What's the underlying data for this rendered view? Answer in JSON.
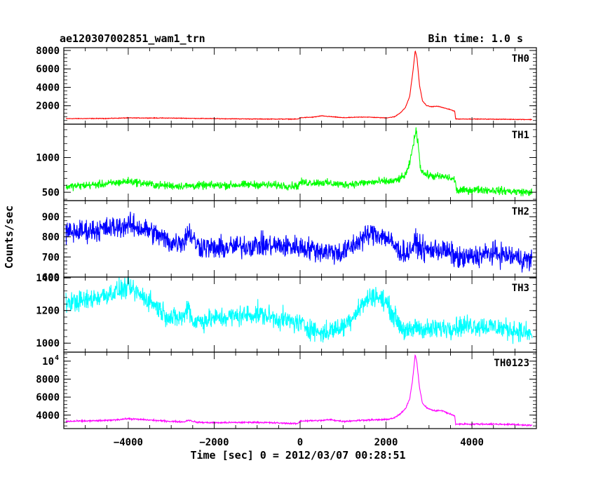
{
  "chart_data": {
    "type": "line",
    "title_left": "ae120307002851_wam1_trn",
    "title_right": "Bin time: 1.0 s",
    "xlabel": "Time [sec] 0 = 2012/03/07 00:28:51",
    "ylabel": "Counts/sec",
    "xlim": [
      -5500,
      5500
    ],
    "xticks": [
      -4000,
      -2000,
      0,
      2000,
      4000
    ],
    "xticklabels": [
      "−4000",
      "−2000",
      "0",
      "2000",
      "4000"
    ],
    "panels": [
      {
        "name": "TH0",
        "color": "#ff0000",
        "ylim": [
          0,
          8300
        ],
        "yticks": [
          2000,
          4000,
          6000,
          8000
        ],
        "yticklabels": [
          "2000",
          "4000",
          "6000",
          "8000"
        ],
        "noise": 25,
        "x": [
          -5450,
          -4500,
          -4000,
          -3000,
          -2000,
          -1000,
          -50,
          0,
          300,
          500,
          700,
          1000,
          1500,
          2000,
          2200,
          2350,
          2450,
          2550,
          2620,
          2680,
          2720,
          2780,
          2850,
          2950,
          3050,
          3200,
          3400,
          3550,
          3600,
          3620,
          4000,
          4500,
          5000,
          5400
        ],
        "y": [
          600,
          620,
          680,
          660,
          600,
          560,
          550,
          700,
          760,
          900,
          820,
          700,
          780,
          680,
          800,
          1300,
          1800,
          3000,
          5500,
          8000,
          7200,
          4200,
          2500,
          2000,
          1900,
          1950,
          1700,
          1500,
          1400,
          560,
          560,
          540,
          520,
          500
        ]
      },
      {
        "name": "TH1",
        "color": "#00ff00",
        "ylim": [
          380,
          1480
        ],
        "yticks": [
          500,
          1000
        ],
        "yticklabels": [
          "500",
          "1000"
        ],
        "noise": 40,
        "x": [
          -5450,
          -4500,
          -4000,
          -3300,
          -2700,
          -2000,
          -1000,
          -50,
          0,
          500,
          1000,
          1800,
          2200,
          2400,
          2500,
          2580,
          2650,
          2700,
          2750,
          2800,
          2900,
          3100,
          3400,
          3600,
          3650,
          4200,
          5000,
          5400
        ],
        "y": [
          580,
          620,
          660,
          600,
          590,
          600,
          610,
          590,
          640,
          640,
          610,
          650,
          660,
          720,
          800,
          1000,
          1250,
          1380,
          1200,
          850,
          760,
          730,
          720,
          680,
          520,
          540,
          510,
          500
        ]
      },
      {
        "name": "TH2",
        "color": "#0000ff",
        "ylim": [
          600,
          980
        ],
        "yticks": [
          600,
          700,
          800,
          900
        ],
        "yticklabels": [
          "600",
          "700",
          "800",
          "900"
        ],
        "noise": 40,
        "x": [
          -5450,
          -5000,
          -4500,
          -4000,
          -3500,
          -3000,
          -2700,
          -2600,
          -2400,
          -2000,
          -1000,
          0,
          500,
          1000,
          1500,
          1700,
          2000,
          2300,
          2500,
          2700,
          2900,
          3200,
          3500,
          3700,
          4000,
          4500,
          5000,
          5400
        ],
        "y": [
          820,
          830,
          840,
          860,
          830,
          770,
          780,
          830,
          760,
          740,
          760,
          750,
          730,
          720,
          800,
          820,
          800,
          730,
          720,
          770,
          730,
          740,
          720,
          690,
          700,
          720,
          700,
          680
        ]
      },
      {
        "name": "TH3",
        "color": "#00ffff",
        "ylim": [
          945,
          1405
        ],
        "yticks": [
          1000,
          1200,
          1400
        ],
        "yticklabels": [
          "1000",
          "1200",
          "1400"
        ],
        "noise": 45,
        "x": [
          -5450,
          -5000,
          -4500,
          -4000,
          -3500,
          -3000,
          -2700,
          -2600,
          -2500,
          -2000,
          -1000,
          0,
          500,
          1000,
          1500,
          1700,
          2000,
          2300,
          2500,
          2700,
          3000,
          3500,
          4000,
          4500,
          5000,
          5400
        ],
        "y": [
          1250,
          1260,
          1300,
          1340,
          1260,
          1150,
          1160,
          1240,
          1130,
          1150,
          1180,
          1120,
          1060,
          1100,
          1250,
          1300,
          1250,
          1120,
          1060,
          1100,
          1080,
          1100,
          1110,
          1100,
          1080,
          1050
        ]
      },
      {
        "name": "TH0123",
        "color": "#ff00ff",
        "ylim": [
          2500,
          11000
        ],
        "yticks": [
          4000,
          6000,
          8000
        ],
        "yticklabels": [
          "4000",
          "6000",
          "8000"
        ],
        "ytick_power": "10",
        "ytick_power_exp": "4",
        "ytick_power_value": 10000,
        "noise": 60,
        "x": [
          -5450,
          -4500,
          -4000,
          -3000,
          -2700,
          -2600,
          -2400,
          -2000,
          -1000,
          -50,
          0,
          500,
          700,
          1000,
          1500,
          2000,
          2200,
          2350,
          2450,
          2550,
          2620,
          2680,
          2720,
          2780,
          2850,
          2950,
          3100,
          3300,
          3500,
          3600,
          3620,
          4000,
          4500,
          5000,
          5400
        ],
        "y": [
          3300,
          3400,
          3600,
          3300,
          3250,
          3450,
          3200,
          3150,
          3200,
          3050,
          3350,
          3400,
          3500,
          3300,
          3450,
          3500,
          3700,
          4200,
          4700,
          5800,
          8000,
          10800,
          9800,
          7000,
          5300,
          4800,
          4500,
          4500,
          4100,
          3900,
          3000,
          3000,
          3000,
          2950,
          2850
        ]
      }
    ]
  }
}
